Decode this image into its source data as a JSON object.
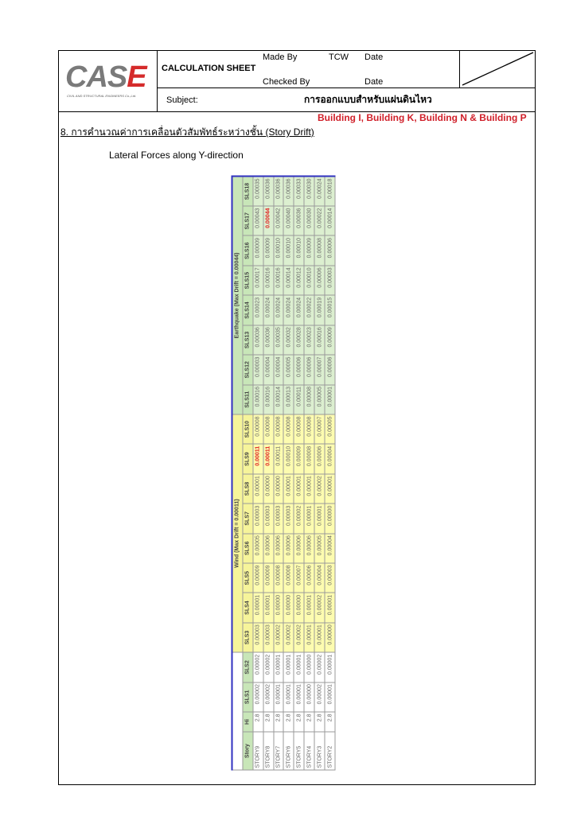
{
  "header": {
    "logo": "CASE",
    "logo_sub": "CIVIL AND STRUCTURAL ENGINEERS Co.,Ltd.",
    "sheet_title": "CALCULATION SHEET",
    "made_by_label": "Made By",
    "made_by": "TCW",
    "date_label": "Date",
    "checked_by_label": "Checked By",
    "date_label2": "Date",
    "subject_label": "Subject:",
    "subject": "การออกแบบสำหรับแผ่นดินไหว"
  },
  "buildings": "Building I, Building K, Building N & Building P",
  "section_title": "8. การคำนวณค่าการเคลื่อนตัวสัมพัทธ์ระหว่างชั้น (Story Drift)",
  "subtitle": "Lateral Forces along Y-direction",
  "table": {
    "wind_header": "Wind (Max Drift = 0.00011)",
    "eq_header": "Earthquake (Max Drift = 0.00044)",
    "columns": [
      "Story",
      "Hi",
      "SLS1",
      "SLS2",
      "SLS3",
      "SLS4",
      "SLS5",
      "SLS6",
      "SLS7",
      "SLS8",
      "SLS9",
      "SLS10",
      "SLS11",
      "SLS12",
      "SLS13",
      "SLS14",
      "SLS15",
      "SLS16",
      "SLS17",
      "SLS18"
    ],
    "rows": [
      [
        "STORY9",
        "2.8",
        "0.00002",
        "0.00002",
        "0.00003",
        "0.00001",
        "0.00009",
        "0.00005",
        "0.00003",
        "0.00001",
        "0.00011",
        "0.00008",
        "0.00016",
        "0.00003",
        "0.00036",
        "0.00023",
        "0.00017",
        "0.00009",
        "0.00043",
        "0.00035"
      ],
      [
        "STORY8",
        "2.8",
        "0.00002",
        "0.00002",
        "0.00003",
        "0.00001",
        "0.00009",
        "0.00006",
        "0.00003",
        "0.00000",
        "0.00011",
        "0.00008",
        "0.00016",
        "0.00004",
        "0.00036",
        "0.00024",
        "0.00016",
        "0.00009",
        "0.00044",
        "0.00036"
      ],
      [
        "STORY7",
        "2.8",
        "0.00001",
        "0.00001",
        "0.00002",
        "0.00000",
        "0.00008",
        "0.00006",
        "0.00003",
        "0.00000",
        "0.00011",
        "0.00008",
        "0.00014",
        "0.00004",
        "0.00035",
        "0.00024",
        "0.00016",
        "0.00010",
        "0.00042",
        "0.00036"
      ],
      [
        "STORY6",
        "2.8",
        "0.00001",
        "0.00001",
        "0.00002",
        "0.00000",
        "0.00008",
        "0.00006",
        "0.00003",
        "0.00001",
        "0.00010",
        "0.00008",
        "0.00013",
        "0.00005",
        "0.00032",
        "0.00024",
        "0.00014",
        "0.00010",
        "0.00040",
        "0.00036"
      ],
      [
        "STORY5",
        "2.8",
        "0.00001",
        "0.00001",
        "0.00002",
        "0.00000",
        "0.00007",
        "0.00006",
        "0.00002",
        "0.00001",
        "0.00009",
        "0.00008",
        "0.00011",
        "0.00006",
        "0.00028",
        "0.00024",
        "0.00012",
        "0.00010",
        "0.00036",
        "0.00033"
      ],
      [
        "STORY4",
        "2.8",
        "0.00000",
        "0.00000",
        "0.00001",
        "0.00001",
        "0.00006",
        "0.00006",
        "0.00001",
        "0.00001",
        "0.00008",
        "0.00008",
        "0.00008",
        "0.00006",
        "0.00023",
        "0.00022",
        "0.00010",
        "0.00009",
        "0.00030",
        "0.00030"
      ],
      [
        "STORY3",
        "2.8",
        "0.00002",
        "0.00002",
        "0.00001",
        "0.00002",
        "0.00004",
        "0.00005",
        "0.00001",
        "0.00002",
        "0.00006",
        "0.00007",
        "0.00005",
        "0.00007",
        "0.00016",
        "0.00019",
        "0.00006",
        "0.00008",
        "0.00022",
        "0.00024"
      ],
      [
        "STORY2",
        "2.8",
        "0.00001",
        "0.00001",
        "0.00000",
        "0.00001",
        "0.00003",
        "0.00004",
        "0.00000",
        "0.00001",
        "0.00004",
        "0.00005",
        "0.00001",
        "0.00006",
        "0.00009",
        "0.00015",
        "0.00003",
        "0.00006",
        "0.00014",
        "0.00018"
      ]
    ],
    "highlighted": [
      {
        "row": 0,
        "col": "SLS9"
      },
      {
        "row": 1,
        "col": "SLS9"
      },
      {
        "row": 1,
        "col": "SLS17"
      }
    ],
    "colors": {
      "wind": "#fdfcb0",
      "earthquake": "#dcefd0",
      "highlight": "#e02020",
      "border": "#3030c0"
    }
  }
}
